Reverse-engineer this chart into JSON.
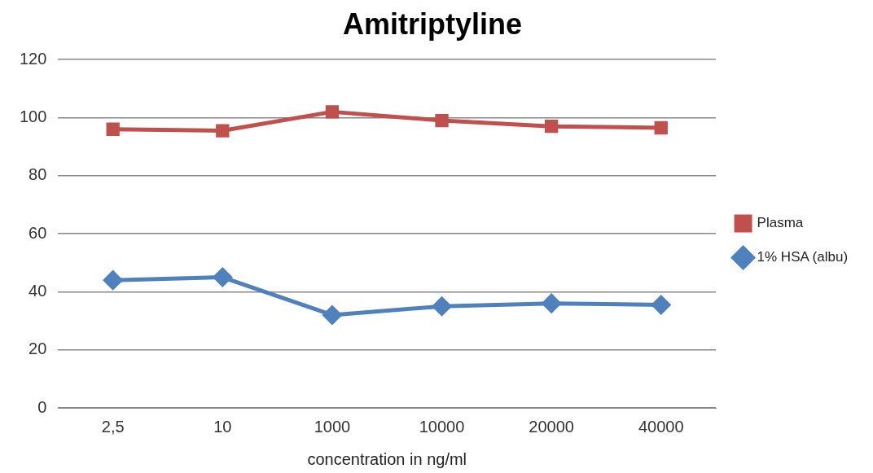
{
  "chart_data": {
    "type": "line",
    "title": "Amitriptyline",
    "xlabel": "concentration in ng/ml",
    "categories": [
      "2,5",
      "10",
      "1000",
      "10000",
      "20000",
      "40000"
    ],
    "series": [
      {
        "name": "Plasma",
        "color": "#c0504d",
        "marker": "square",
        "values": [
          96,
          95.5,
          102,
          99,
          97,
          96.5
        ]
      },
      {
        "name": "1% HSA (albu)",
        "color": "#4f81bd",
        "marker": "diamond",
        "values": [
          44,
          45,
          32,
          35,
          36,
          35.5
        ]
      }
    ],
    "ylim": [
      0,
      120
    ],
    "yticks": [
      0,
      20,
      40,
      60,
      80,
      100,
      120
    ],
    "grid": "y",
    "legend": "right",
    "line_style": "solid"
  }
}
